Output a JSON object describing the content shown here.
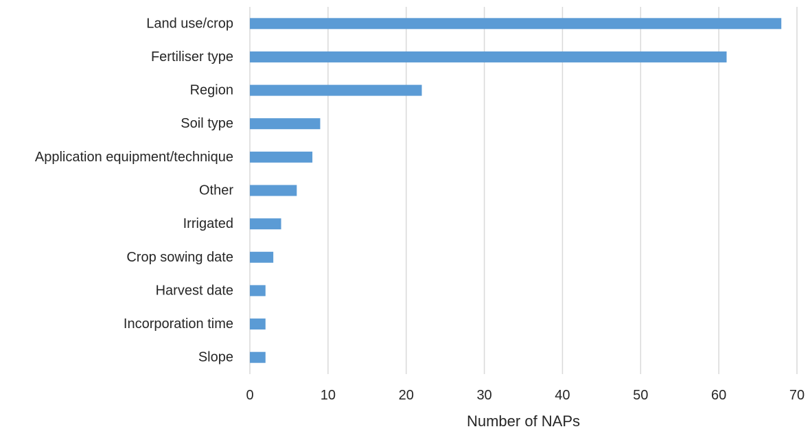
{
  "chart_data": {
    "type": "bar",
    "orientation": "horizontal",
    "categories": [
      "Land use/crop",
      "Fertiliser type",
      "Region",
      "Soil type",
      "Application equipment/technique",
      "Other",
      "Irrigated",
      "Crop sowing date",
      "Harvest date",
      "Incorporation time",
      "Slope"
    ],
    "values": [
      68,
      61,
      22,
      9,
      8,
      6,
      4,
      3,
      2,
      2,
      2
    ],
    "xlabel": "Number of NAPs",
    "ylabel": "",
    "xlim": [
      0,
      70
    ],
    "xticks": [
      0,
      10,
      20,
      30,
      40,
      50,
      60,
      70
    ],
    "grid": "vertical",
    "legend": "none",
    "bar_color": "#5b9bd5"
  }
}
